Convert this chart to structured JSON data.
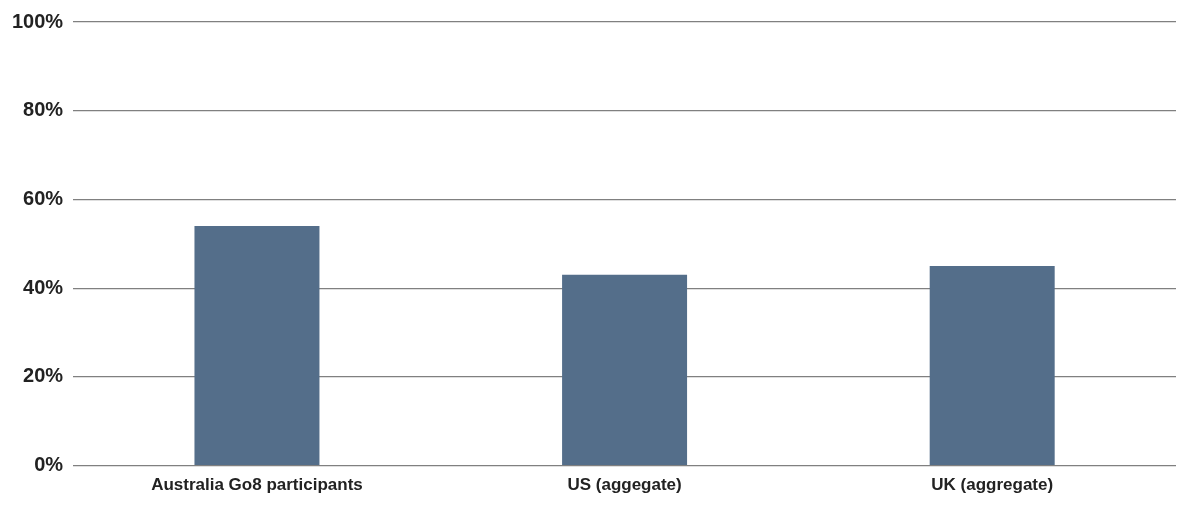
{
  "chart_data": {
    "type": "bar",
    "categories": [
      "Australia Go8 participants",
      "US (aggegate)",
      "UK (aggregate)"
    ],
    "values": [
      54,
      43,
      45
    ],
    "color": "#546e8a",
    "ylim": [
      0,
      100
    ],
    "yticks": [
      {
        "value": 0,
        "label": "0%"
      },
      {
        "value": 20,
        "label": "20%"
      },
      {
        "value": 40,
        "label": "40%"
      },
      {
        "value": 60,
        "label": "60%"
      },
      {
        "value": 80,
        "label": "80%"
      },
      {
        "value": 100,
        "label": "100%"
      }
    ],
    "grid": "y",
    "legend": false
  }
}
